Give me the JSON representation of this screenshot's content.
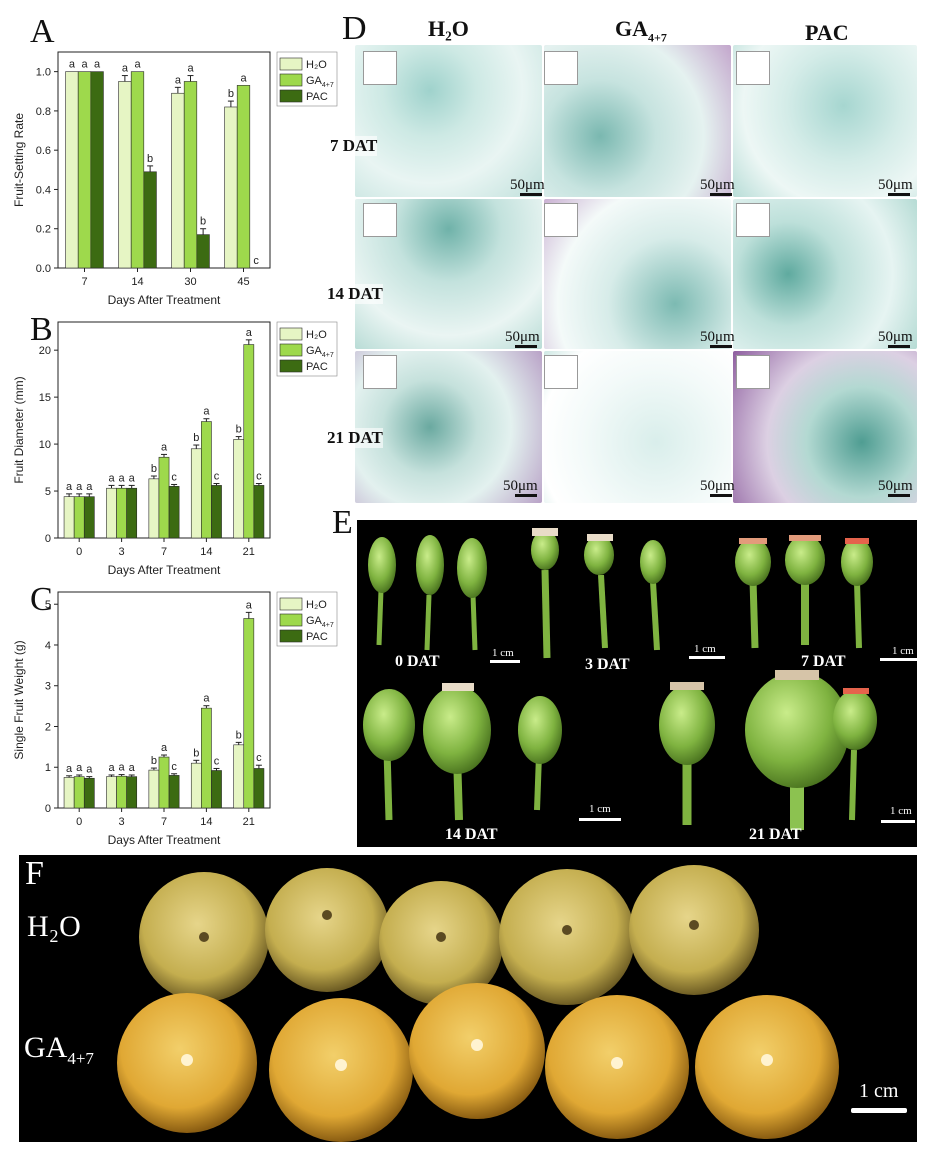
{
  "panels": {
    "A": "A",
    "B": "B",
    "C": "C",
    "D": "D",
    "E": "E",
    "F": "F"
  },
  "chart_data": [
    {
      "type": "bar",
      "panel": "A",
      "categories": [
        "7",
        "14",
        "30",
        "45"
      ],
      "series": [
        {
          "name": "H2O",
          "values": [
            1.0,
            0.95,
            0.89,
            0.82
          ],
          "errors": [
            0.0,
            0.03,
            0.03,
            0.03
          ],
          "letters": [
            "a",
            "a",
            "a",
            "b"
          ]
        },
        {
          "name": "GA4+7",
          "values": [
            1.0,
            1.0,
            0.95,
            0.93
          ],
          "errors": [
            0.0,
            0.0,
            0.03,
            0.0
          ],
          "letters": [
            "a",
            "a",
            "a",
            "a"
          ]
        },
        {
          "name": "PAC",
          "values": [
            1.0,
            0.49,
            0.17,
            0.0
          ],
          "errors": [
            0.0,
            0.03,
            0.03,
            0.0
          ],
          "letters": [
            "a",
            "b",
            "b",
            "c"
          ]
        }
      ],
      "xlabel": "Days After Treatment",
      "ylabel": "Fruit-Setting Rate",
      "ylim": [
        0,
        1.1
      ],
      "yticks": [
        "0.0",
        "0.2",
        "0.4",
        "0.6",
        "0.8",
        "1.0"
      ],
      "legend": [
        "H₂O",
        "GA4+7",
        "PAC"
      ],
      "legend_position": "top-right"
    },
    {
      "type": "bar",
      "panel": "B",
      "categories": [
        "0",
        "3",
        "7",
        "14",
        "21"
      ],
      "series": [
        {
          "name": "H2O",
          "values": [
            4.4,
            5.3,
            6.3,
            9.5,
            10.5
          ],
          "errors": [
            0.3,
            0.3,
            0.3,
            0.4,
            0.3
          ],
          "letters": [
            "a",
            "a",
            "b",
            "b",
            "b"
          ]
        },
        {
          "name": "GA4+7",
          "values": [
            4.4,
            5.3,
            8.6,
            12.4,
            20.6
          ],
          "errors": [
            0.3,
            0.3,
            0.3,
            0.3,
            0.5
          ],
          "letters": [
            "a",
            "a",
            "a",
            "a",
            "a"
          ]
        },
        {
          "name": "PAC",
          "values": [
            4.4,
            5.3,
            5.5,
            5.6,
            5.6
          ],
          "errors": [
            0.3,
            0.3,
            0.2,
            0.2,
            0.2
          ],
          "letters": [
            "a",
            "a",
            "c",
            "c",
            "c"
          ]
        }
      ],
      "xlabel": "Days After Treatment",
      "ylabel": "Fruit Diameter (mm)",
      "ylim": [
        0,
        23
      ],
      "yticks": [
        "0",
        "5",
        "10",
        "15",
        "20"
      ],
      "legend": [
        "H₂O",
        "GA4+7",
        "PAC"
      ],
      "legend_position": "top-right"
    },
    {
      "type": "bar",
      "panel": "C",
      "categories": [
        "0",
        "3",
        "7",
        "14",
        "21"
      ],
      "series": [
        {
          "name": "H2O",
          "values": [
            0.75,
            0.77,
            0.93,
            1.1,
            1.55
          ],
          "errors": [
            0.04,
            0.04,
            0.05,
            0.07,
            0.06
          ],
          "letters": [
            "a",
            "a",
            "b",
            "b",
            "b"
          ]
        },
        {
          "name": "GA4+7",
          "values": [
            0.77,
            0.78,
            1.25,
            2.45,
            4.65
          ],
          "errors": [
            0.04,
            0.04,
            0.05,
            0.06,
            0.15
          ],
          "letters": [
            "a",
            "a",
            "a",
            "a",
            "a"
          ]
        },
        {
          "name": "PAC",
          "values": [
            0.73,
            0.77,
            0.8,
            0.92,
            0.97
          ],
          "errors": [
            0.04,
            0.04,
            0.04,
            0.05,
            0.08
          ],
          "letters": [
            "a",
            "a",
            "c",
            "c",
            "c"
          ]
        }
      ],
      "xlabel": "Days After Treatment",
      "ylabel": "Single Fruit Weight (g)",
      "ylim": [
        0,
        5.3
      ],
      "yticks": [
        "0",
        "1",
        "2",
        "3",
        "4",
        "5"
      ],
      "legend": [
        "H₂O",
        "GA4+7",
        "PAC"
      ],
      "legend_position": "top-right"
    }
  ],
  "panel_d": {
    "columns": [
      "H₂O",
      "GA",
      "PAC"
    ],
    "ga_subscript": "4+7",
    "rows": [
      "7 DAT",
      "14 DAT",
      "21 DAT"
    ],
    "scale": "50μm"
  },
  "panel_e": {
    "labels": [
      "0 DAT",
      "3 DAT",
      "7 DAT",
      "14 DAT",
      "21 DAT"
    ],
    "scale": "1 cm"
  },
  "panel_f": {
    "rows": [
      "H₂O",
      "GA"
    ],
    "ga_subscript": "4+7",
    "scale": "1 cm"
  },
  "colors": {
    "h2o": "#e6f5c4",
    "ga": "#9ed94c",
    "pac": "#3c6b12",
    "stain": "#7fbfb9",
    "magenta": "#9a5aa5"
  }
}
